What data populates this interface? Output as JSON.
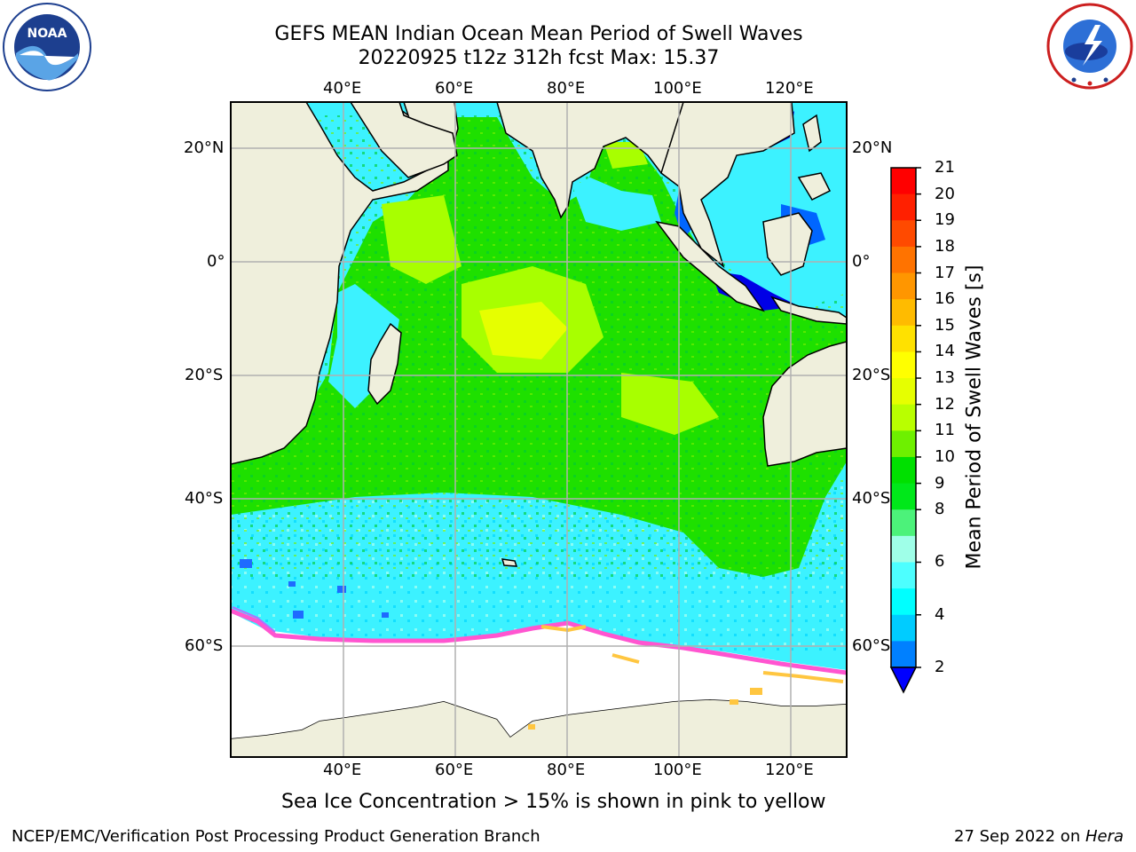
{
  "title": {
    "line1": "GEFS MEAN Indian Ocean Mean Period of Swell Waves",
    "line2": "20220925 t12z 312h fcst   Max: 15.37"
  },
  "logos": {
    "noaa": {
      "text": "NOAA",
      "ring_text": "NATIONAL OCEANIC AND ATMOSPHERIC ADMINISTRATION · U.S. DEPARTMENT OF COMMERCE"
    },
    "nws": {
      "ring_text": "NATIONAL WEATHER SERVICE"
    }
  },
  "axes": {
    "lon_labels": [
      "40°E",
      "60°E",
      "80°E",
      "100°E",
      "120°E"
    ],
    "lat_labels_left": [
      "20°N",
      "0°",
      "20°S",
      "40°S",
      "60°S"
    ],
    "lat_labels_right": [
      "20°N",
      "0°",
      "20°S",
      "40°S",
      "60°S"
    ]
  },
  "colorbar": {
    "label": "Mean Period of Swell Waves [s]",
    "ticks": [
      "21",
      "20",
      "19",
      "18",
      "17",
      "16",
      "15",
      "14",
      "13",
      "12",
      "11",
      "10",
      "9",
      "8",
      "6",
      "4",
      "2"
    ],
    "colors_top_to_bottom": [
      "#ff0000",
      "#ff2000",
      "#ff4a00",
      "#ff7300",
      "#ff9600",
      "#ffbb00",
      "#ffe100",
      "#ffff00",
      "#e6ff00",
      "#b9ff00",
      "#6ef000",
      "#00e000",
      "#00e81a",
      "#4cf27a",
      "#9fffe8",
      "#4dffff",
      "#00ffff",
      "#00ccff",
      "#0080ff"
    ],
    "extend_color": "#0000ff",
    "colors": {
      "land": "#efefdc",
      "ocean_cyan": "#3cf2ff",
      "ice_pink": "#ff66cc",
      "ice_yellow": "#ffd03a"
    }
  },
  "notes": {
    "sea_ice": "Sea Ice Concentration > 15% is shown in pink to yellow"
  },
  "footer": {
    "left": "NCEP/EMC/Verification Post Processing Product Generation Branch",
    "date": "27 Sep 2022 on ",
    "machine": "Hera"
  }
}
